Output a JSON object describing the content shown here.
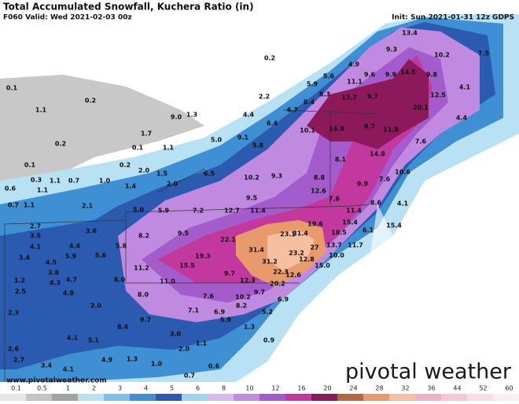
{
  "header": {
    "title": "Total Accumulated Snowfall, Kuchera Ratio (in)",
    "valid": "F060 Valid: Wed 2021-02-03 00z",
    "init": "Init: Sun 2021-01-31 12z GDPS"
  },
  "map": {
    "labels": [
      "13.4",
      "9.3",
      "10.2",
      "7.5",
      "0.2",
      "4.9",
      "14.5",
      "9.6",
      "9.9",
      "9.8",
      "5.6",
      "11.1",
      "5.9",
      "0.1",
      "8.3",
      "13.7",
      "9.7",
      "12.5",
      "4.1",
      "0.2",
      "2.2",
      "8.4",
      "20.1",
      "6.7",
      "4.4",
      "1.1",
      "1.3",
      "9.0",
      "4.4",
      "6.4",
      "10.1",
      "14.8",
      "9.7",
      "11.8",
      "0.2",
      "1.7",
      "5.0",
      "9.1",
      "5.8",
      "7.6",
      "0.1",
      "1.1",
      "14.8",
      "8.1",
      "0.1",
      "0.2",
      "2.0",
      "1.5",
      "6.5",
      "10.6",
      "0.3",
      "1.1",
      "0.7",
      "1.0",
      "2.0",
      "10.2",
      "9.3",
      "8.8",
      "9.9",
      "7.6",
      "0.6",
      "1.1",
      "1.4",
      "12.6",
      "8.6",
      "0.7",
      "1.1",
      "2.1",
      "9.5",
      "7.6",
      "5.0",
      "5.9",
      "7.2",
      "12.7",
      "11.4",
      "11.4",
      "4.1",
      "15.4",
      "2.7",
      "3.6",
      "19.6",
      "15.4",
      "3.5",
      "8.2",
      "9.5",
      "22.1",
      "23.1",
      "31.4",
      "18.5",
      "6.1",
      "4.4",
      "5.8",
      "4.1",
      "31.4",
      "27",
      "13.7",
      "11.7",
      "5.9",
      "5.6",
      "3.4",
      "19.3",
      "23.2",
      "10.0",
      "4.5",
      "15.5",
      "11.2",
      "31.2",
      "12.8",
      "3.8",
      "4.7",
      "9.7",
      "22.3",
      "15.0",
      "1.2",
      "4.3",
      "8.0",
      "11.0",
      "12.3",
      "20.2",
      "12.6",
      "2.5",
      "4.8",
      "8.0",
      "7.6",
      "10.2",
      "9.7",
      "6.9",
      "2.0",
      "8.2",
      "7.1",
      "6.9",
      "5.2",
      "2.3",
      "8.4",
      "9.7",
      "5.9",
      "1.3",
      "3.0",
      "1.1",
      "4.1",
      "5.1",
      "0.9",
      "2.0",
      "2.6",
      "2.7",
      "3.4",
      "4.9",
      "1.3",
      "4.1",
      "0.6",
      "1.0",
      "0.7"
    ]
  },
  "colorbar": {
    "ticks": [
      0.1,
      0.5,
      1,
      2,
      3,
      4,
      5,
      6,
      8,
      10,
      12,
      16,
      20,
      24,
      28,
      32,
      36,
      44,
      52,
      60
    ],
    "colors": [
      "#e6e6e6",
      "#c4c4c4",
      "#a2a2a2",
      "#b8e2f4",
      "#7cc0ea",
      "#3f8fd4",
      "#2a5bb0",
      "#9ad6ee",
      "#d9b8ee",
      "#c08ae0",
      "#a45ccc",
      "#c2389e",
      "#8c1a5a",
      "#b06a3e",
      "#e89a6a",
      "#f4c0a0",
      "#f0b0c8",
      "#f4c8d8",
      "#f8dce8",
      "#fbeef4"
    ]
  },
  "footer": {
    "url": "www.pivotalweather.com",
    "logo": "pivotal weather"
  }
}
